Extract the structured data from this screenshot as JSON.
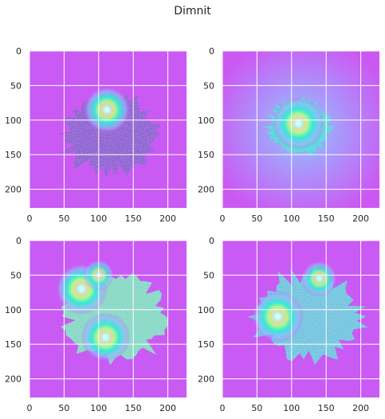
{
  "figure_title": "Dimnit",
  "chart_data": [
    {
      "type": "heatmap",
      "panel": "top-left",
      "xlim": [
        0,
        227
      ],
      "ylim": [
        227,
        0
      ],
      "x_ticks": [
        0,
        50,
        100,
        150,
        200
      ],
      "y_ticks": [
        0,
        50,
        100,
        150,
        200
      ],
      "grid": true,
      "colormap": "cool-to-magenta with jet-like highlights",
      "leaf_color": "#7a4fc8",
      "hotspots": [
        {
          "x": 112,
          "y": 85,
          "intensity": 0.9
        }
      ]
    },
    {
      "type": "heatmap",
      "panel": "top-right",
      "xlim": [
        0,
        227
      ],
      "ylim": [
        227,
        0
      ],
      "x_ticks": [
        0,
        50,
        100,
        150,
        200
      ],
      "y_ticks": [
        0,
        50,
        100,
        150,
        200
      ],
      "grid": true,
      "colormap": "cool-to-magenta with jet-like highlights",
      "leaf_color": "#3ad6cf",
      "hotspots": [
        {
          "x": 110,
          "y": 105,
          "intensity": 1.0
        }
      ]
    },
    {
      "type": "heatmap",
      "panel": "bottom-left",
      "xlim": [
        0,
        227
      ],
      "ylim": [
        227,
        0
      ],
      "x_ticks": [
        0,
        50,
        100,
        150,
        200
      ],
      "y_ticks": [
        0,
        50,
        100,
        150,
        200
      ],
      "grid": true,
      "colormap": "cool-to-magenta with jet-like highlights",
      "leaf_color": "#6fe0b8",
      "hotspots": [
        {
          "x": 75,
          "y": 70,
          "intensity": 1.0
        },
        {
          "x": 110,
          "y": 140,
          "intensity": 0.95
        },
        {
          "x": 100,
          "y": 50,
          "intensity": 0.6
        }
      ]
    },
    {
      "type": "heatmap",
      "panel": "bottom-right",
      "xlim": [
        0,
        227
      ],
      "ylim": [
        227,
        0
      ],
      "x_ticks": [
        0,
        50,
        100,
        150,
        200
      ],
      "y_ticks": [
        0,
        50,
        100,
        150,
        200
      ],
      "grid": true,
      "colormap": "cool-to-magenta with jet-like highlights",
      "leaf_color": "#56c8d8",
      "hotspots": [
        {
          "x": 80,
          "y": 110,
          "intensity": 1.0
        },
        {
          "x": 140,
          "y": 55,
          "intensity": 0.7
        }
      ]
    }
  ]
}
